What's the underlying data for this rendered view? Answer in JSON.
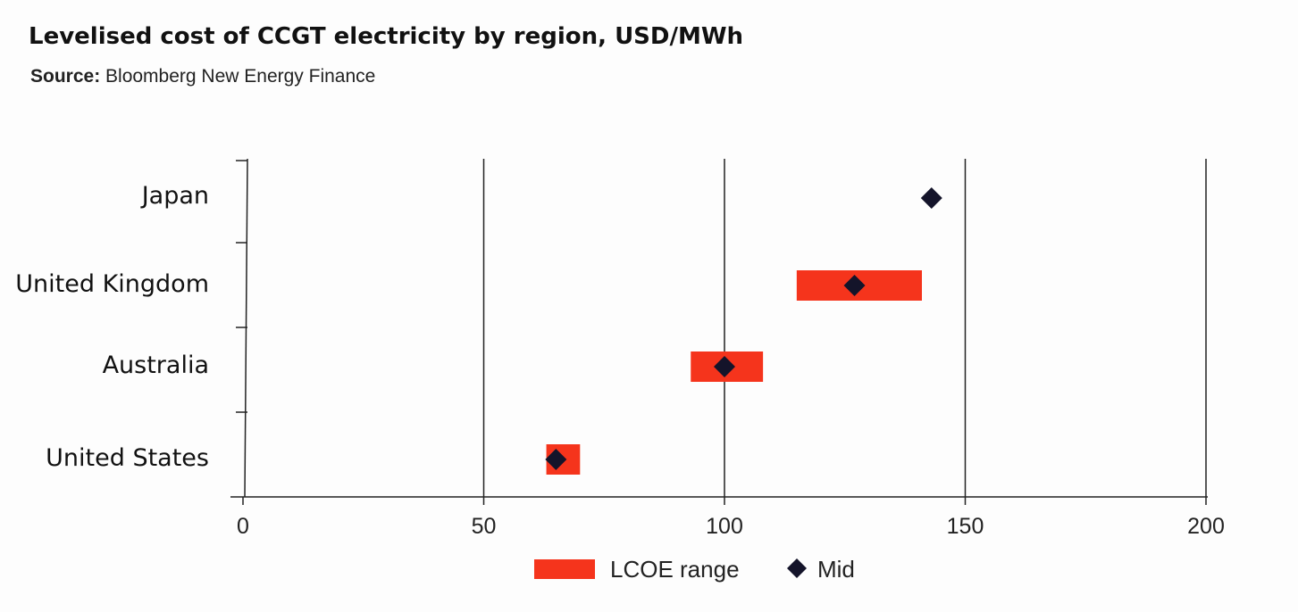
{
  "header": {
    "title": "Levelised cost of CCGT electricity by region, USD/MWh",
    "source_label": "Source:",
    "source_value": "Bloomberg New Energy Finance"
  },
  "colors": {
    "range": "#f5341c",
    "mid": "#14142a",
    "grid": "#222222",
    "background": "#fdfdfd"
  },
  "chart_data": {
    "type": "range-bar",
    "title": "Levelised cost of CCGT electricity by region, USD/MWh",
    "xlim": [
      0,
      200
    ],
    "xticks": [
      0,
      50,
      100,
      150,
      200
    ],
    "grid": "vertical",
    "legend_position": "bottom-center",
    "categories": [
      "Japan",
      "United Kingdom",
      "Australia",
      "United States"
    ],
    "series": [
      {
        "name": "LCOE range",
        "marker": "bar",
        "ranges": [
          null,
          [
            115,
            141
          ],
          [
            93,
            108
          ],
          [
            63,
            70
          ]
        ]
      },
      {
        "name": "Mid",
        "marker": "diamond",
        "values": [
          143,
          127,
          100,
          65
        ]
      }
    ]
  }
}
